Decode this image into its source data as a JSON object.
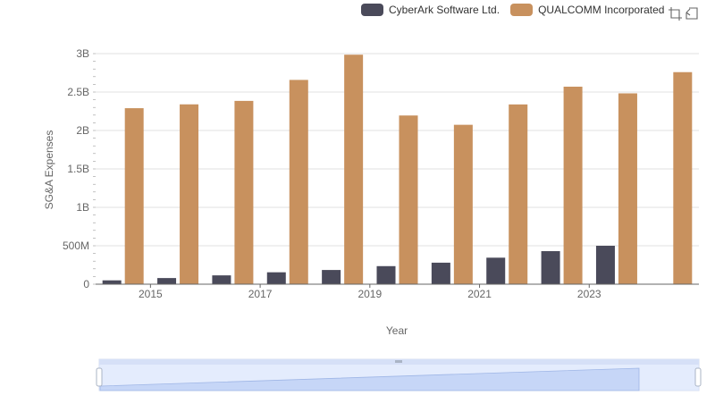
{
  "legend": [
    {
      "label": "CyberArk Software Ltd.",
      "color": "#4a4a5a"
    },
    {
      "label": "QUALCOMM Incorporated",
      "color": "#c8915e"
    }
  ],
  "toolbox": [
    "zoom-icon",
    "restore-icon"
  ],
  "chart_data": {
    "type": "bar",
    "categories": [
      "2014",
      "2015",
      "2016",
      "2017",
      "2018",
      "2019",
      "2020",
      "2021",
      "2022",
      "2023",
      "2024"
    ],
    "x_tick_labels": [
      "2015",
      "2017",
      "2019",
      "2021",
      "2023"
    ],
    "y_tick_labels": [
      "0",
      "500M",
      "1B",
      "1.5B",
      "2B",
      "2.5B",
      "3B"
    ],
    "xlabel": "Year",
    "ylabel": "SG&A Expenses",
    "ylim": [
      0,
      3000000000
    ],
    "grid": true,
    "legend_position": "top-right",
    "series": [
      {
        "name": "CyberArk Software Ltd.",
        "color": "#4a4a5a",
        "values": [
          50000000,
          80000000,
          115000000,
          155000000,
          185000000,
          235000000,
          280000000,
          345000000,
          430000000,
          500000000,
          null
        ]
      },
      {
        "name": "QUALCOMM Incorporated",
        "color": "#c8915e",
        "values": [
          2290000000,
          2340000000,
          2385000000,
          2658000000,
          2986000000,
          2195000000,
          2074000000,
          2339000000,
          2570000000,
          2483000000,
          2759000000
        ]
      }
    ]
  }
}
